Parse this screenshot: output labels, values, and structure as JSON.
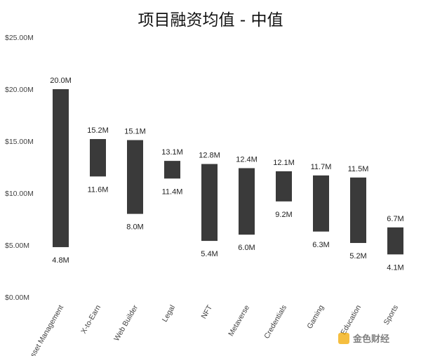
{
  "chart_data": {
    "type": "bar",
    "subtype": "floating-range",
    "title": "项目融资均值 - 中值",
    "xlabel": "",
    "ylabel": "",
    "ylim": [
      0,
      25
    ],
    "y_ticks": [
      "$0.00M",
      "$5.00M",
      "$10.00M",
      "$15.00M",
      "$20.00M",
      "$25.00M"
    ],
    "grid": false,
    "legend": "none",
    "bar_color": "#3a3a3a",
    "categories": [
      "Asset Management",
      "X-to-Earn",
      "Web Builder",
      "Legal",
      "NFT",
      "Metaverse",
      "Credentials",
      "Gaming",
      "Education",
      "Sports"
    ],
    "series": [
      {
        "values": [
          20.0,
          15.2,
          15.1,
          13.1,
          12.8,
          12.4,
          12.1,
          11.7,
          11.5,
          6.7
        ],
        "labels": [
          "20.0M",
          "15.2M",
          "15.1M",
          "13.1M",
          "12.8M",
          "12.4M",
          "12.1M",
          "11.7M",
          "11.5M",
          "6.7M"
        ]
      },
      {
        "values": [
          4.8,
          11.6,
          8.0,
          11.4,
          5.4,
          6.0,
          9.2,
          6.3,
          5.2,
          4.1
        ],
        "labels": [
          "4.8M",
          "11.6M",
          "8.0M",
          "11.4M",
          "5.4M",
          "6.0M",
          "9.2M",
          "6.3M",
          "5.2M",
          "4.1M"
        ]
      }
    ]
  },
  "watermark": {
    "icon": "exchange-logo-icon",
    "text": "金色财经"
  }
}
